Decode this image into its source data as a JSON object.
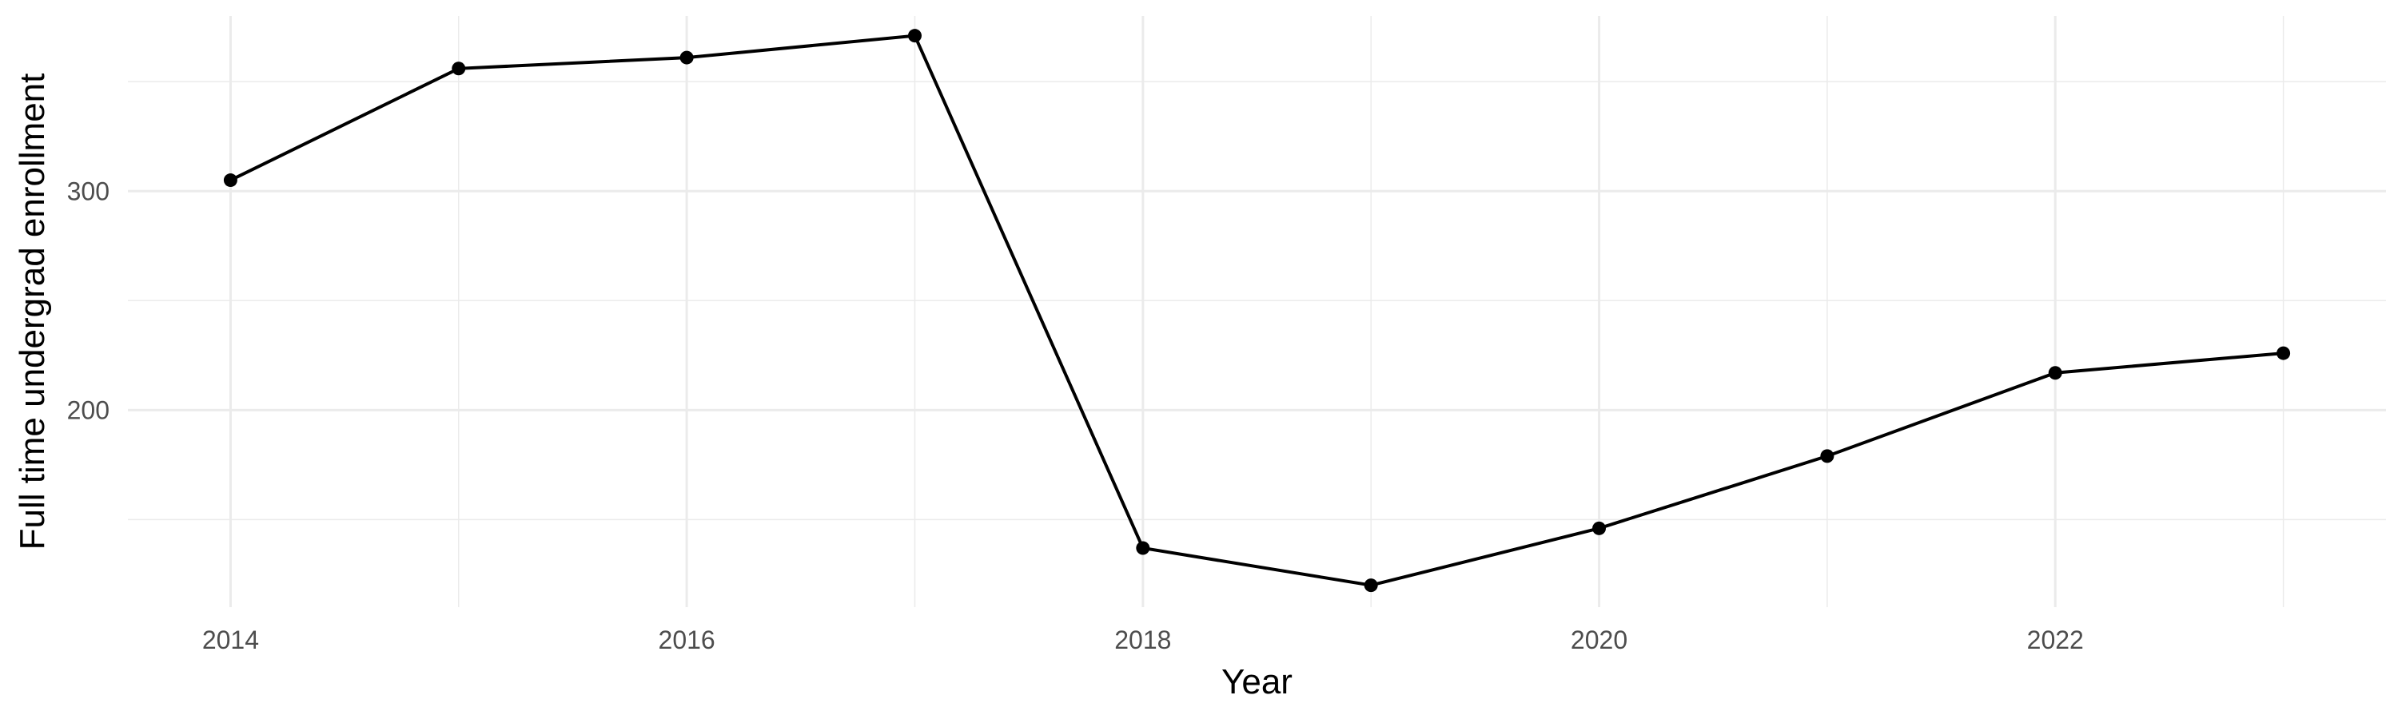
{
  "chart_data": {
    "type": "line",
    "title": "",
    "xlabel": "Year",
    "ylabel": "Full time undergrad enrollment",
    "x": [
      2014,
      2015,
      2016,
      2017,
      2018,
      2019,
      2020,
      2021,
      2022,
      2023
    ],
    "series": [
      {
        "values": [
          305,
          356,
          361,
          371,
          137,
          120,
          146,
          179,
          217,
          226
        ]
      }
    ],
    "xlim": [
      2013.55,
      2023.45
    ],
    "ylim": [
      110,
      380
    ],
    "x_ticks": [
      "2014",
      "2016",
      "2018",
      "2020",
      "2022"
    ],
    "y_ticks": [
      "200",
      "300"
    ],
    "grid": true,
    "legend": "none",
    "colors": {
      "line": "#000000",
      "grid": "#ebebeb",
      "tick_text": "#4d4d4d"
    }
  }
}
